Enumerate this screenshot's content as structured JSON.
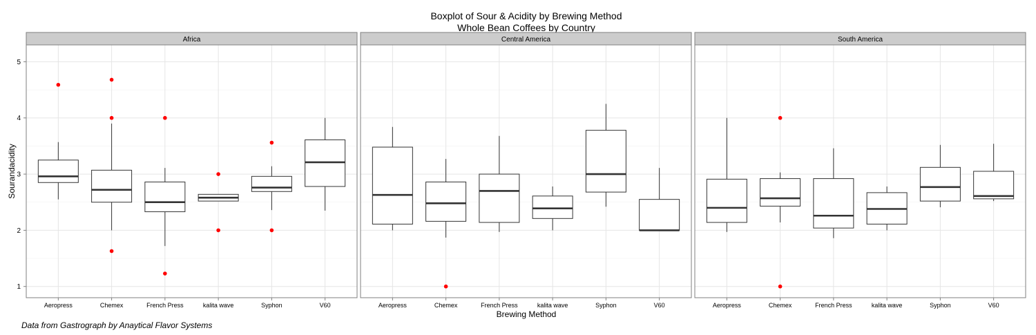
{
  "chart_data": {
    "type": "boxplot",
    "title": "Boxplot of Sour & Acidity by Brewing Method",
    "subtitle": "Whole Bean Coffees by Country",
    "xlabel": "Brewing Method",
    "ylabel": "Sourandacidity",
    "caption": "Data from Gastrograph by Anaytical Flavor Systems",
    "ylim": [
      0.8,
      5.3
    ],
    "yticks": [
      1,
      2,
      3,
      4,
      5
    ],
    "categories": [
      "Aeropress",
      "Chemex",
      "French Press",
      "kalita wave",
      "Syphon",
      "V60"
    ],
    "outlier_color": "#ff0000",
    "panels": [
      {
        "name": "Africa",
        "boxes": [
          {
            "q1": 2.85,
            "median": 2.96,
            "q3": 3.25,
            "lower": 2.55,
            "upper": 3.57,
            "outliers": [
              4.59
            ]
          },
          {
            "q1": 2.5,
            "median": 2.72,
            "q3": 3.07,
            "lower": 2.0,
            "upper": 3.9,
            "outliers": [
              4.68,
              4.0,
              1.63
            ]
          },
          {
            "q1": 2.33,
            "median": 2.5,
            "q3": 2.86,
            "lower": 1.72,
            "upper": 3.11,
            "outliers": [
              4.0,
              1.23
            ]
          },
          {
            "q1": 2.52,
            "median": 2.58,
            "q3": 2.64,
            "lower": 2.52,
            "upper": 2.64,
            "outliers": [
              3.0,
              2.0
            ]
          },
          {
            "q1": 2.69,
            "median": 2.76,
            "q3": 2.96,
            "lower": 2.36,
            "upper": 3.14,
            "outliers": [
              3.56,
              2.0
            ]
          },
          {
            "q1": 2.78,
            "median": 3.21,
            "q3": 3.61,
            "lower": 2.35,
            "upper": 4.0,
            "outliers": []
          }
        ]
      },
      {
        "name": "Central America",
        "boxes": [
          {
            "q1": 2.11,
            "median": 2.63,
            "q3": 3.48,
            "lower": 2.0,
            "upper": 3.84,
            "outliers": []
          },
          {
            "q1": 2.16,
            "median": 2.48,
            "q3": 2.86,
            "lower": 1.87,
            "upper": 3.27,
            "outliers": [
              1.0
            ]
          },
          {
            "q1": 2.14,
            "median": 2.7,
            "q3": 3.0,
            "lower": 1.97,
            "upper": 3.68,
            "outliers": []
          },
          {
            "q1": 2.21,
            "median": 2.39,
            "q3": 2.61,
            "lower": 2.0,
            "upper": 2.78,
            "outliers": []
          },
          {
            "q1": 2.68,
            "median": 3.0,
            "q3": 3.78,
            "lower": 2.42,
            "upper": 4.25,
            "outliers": []
          },
          {
            "q1": 2.0,
            "median": 2.0,
            "q3": 2.55,
            "lower": 2.0,
            "upper": 3.11,
            "outliers": []
          }
        ]
      },
      {
        "name": "South America",
        "boxes": [
          {
            "q1": 2.14,
            "median": 2.4,
            "q3": 2.91,
            "lower": 1.97,
            "upper": 4.0,
            "outliers": []
          },
          {
            "q1": 2.43,
            "median": 2.57,
            "q3": 2.92,
            "lower": 2.14,
            "upper": 3.03,
            "outliers": [
              4.0,
              1.0
            ]
          },
          {
            "q1": 2.04,
            "median": 2.26,
            "q3": 2.92,
            "lower": 1.86,
            "upper": 3.46,
            "outliers": []
          },
          {
            "q1": 2.11,
            "median": 2.38,
            "q3": 2.67,
            "lower": 2.0,
            "upper": 2.78,
            "outliers": []
          },
          {
            "q1": 2.52,
            "median": 2.77,
            "q3": 3.12,
            "lower": 2.41,
            "upper": 3.52,
            "outliers": []
          },
          {
            "q1": 2.56,
            "median": 2.61,
            "q3": 3.05,
            "lower": 2.52,
            "upper": 3.54,
            "outliers": []
          }
        ]
      }
    ]
  }
}
